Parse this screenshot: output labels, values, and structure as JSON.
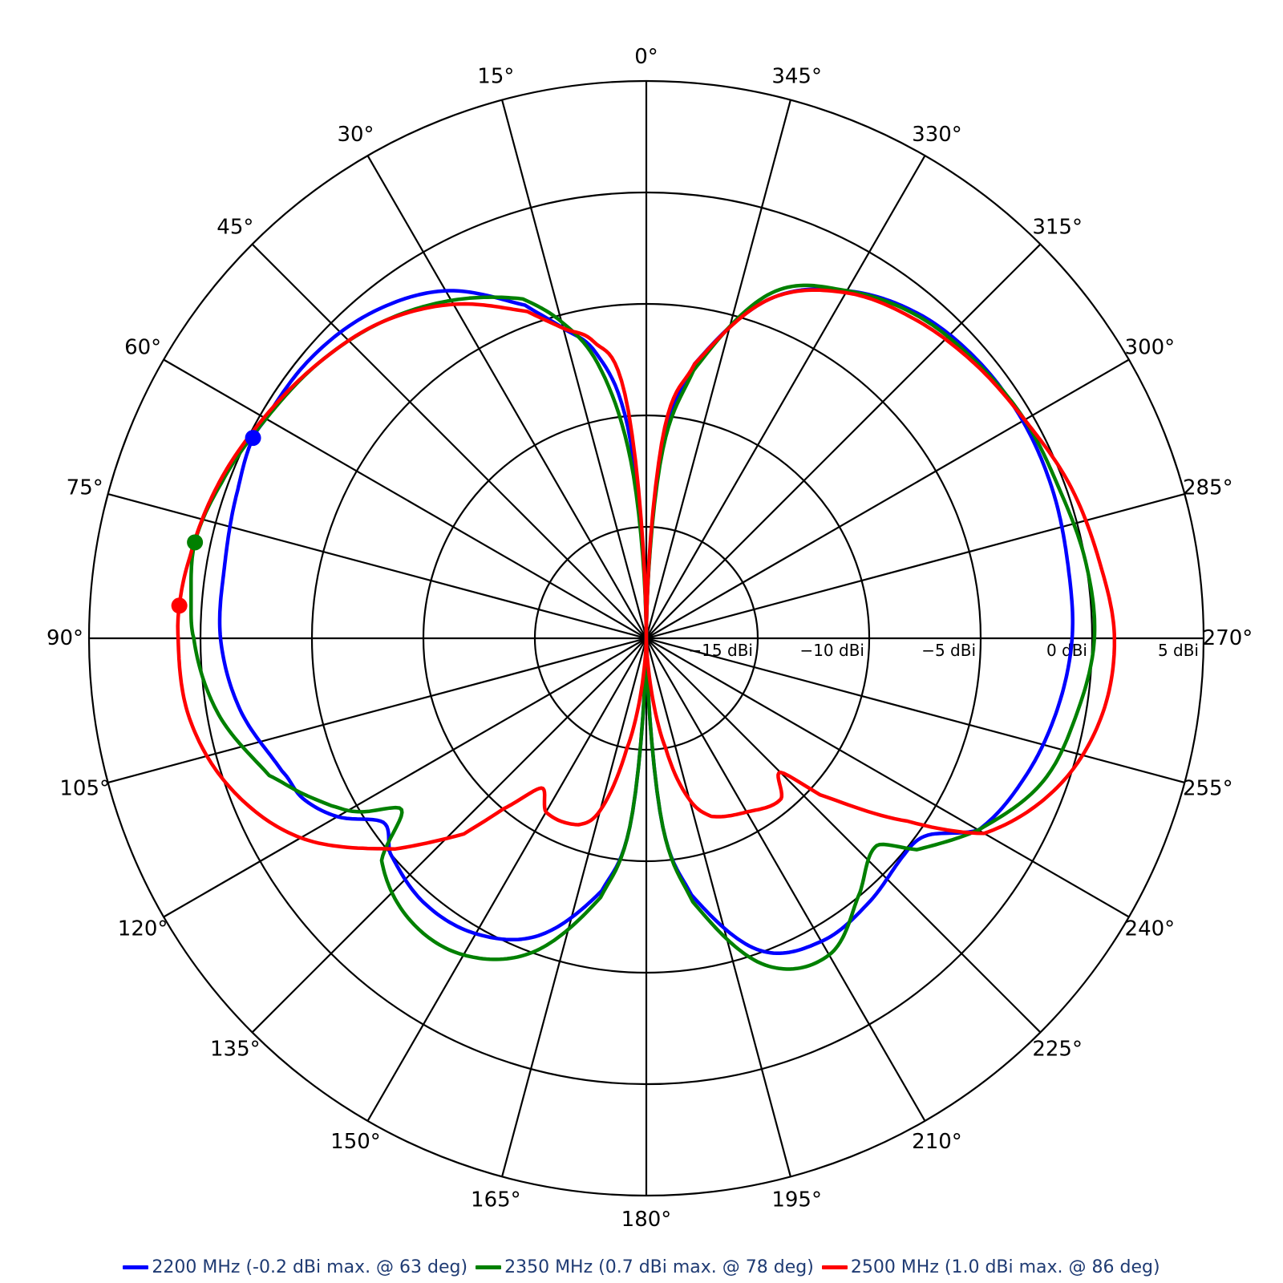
{
  "chart_data": {
    "type": "polar-line",
    "title": "",
    "angle_labels": [
      "0°",
      "15°",
      "30°",
      "45°",
      "60°",
      "75°",
      "90°",
      "105°",
      "120°",
      "135°",
      "150°",
      "165°",
      "180°",
      "195°",
      "210°",
      "225°",
      "240°",
      "255°",
      "270°",
      "285°",
      "300°",
      "315°",
      "330°",
      "345°"
    ],
    "radial_axis": {
      "unit": "dBi",
      "range": [
        -20,
        5
      ],
      "ticks": [
        -15,
        -10,
        -5,
        0,
        5
      ],
      "tick_labels": [
        "−15 dBi",
        "−10 dBi",
        "−5 dBi",
        "0 dBi",
        "5 dBi"
      ],
      "grid_rings": [
        -15,
        -10,
        -5,
        0,
        5
      ]
    },
    "angle_direction": "counterclockwise from top",
    "grid": true,
    "legend_position": "bottom",
    "series": [
      {
        "name": "2200 MHz (-0.2 dBi max. @ 63 deg)",
        "color": "#0000ff",
        "peak": {
          "angle": 63,
          "value": -0.2
        },
        "points": [
          [
            0,
            -20
          ],
          [
            5,
            -10.5
          ],
          [
            10,
            -7.0
          ],
          [
            15,
            -5.6
          ],
          [
            20,
            -4.1
          ],
          [
            30,
            -2.0
          ],
          [
            40,
            -0.9
          ],
          [
            50,
            -0.4
          ],
          [
            60,
            -0.3
          ],
          [
            63,
            -0.2
          ],
          [
            70,
            -0.5
          ],
          [
            80,
            -0.8
          ],
          [
            90,
            -0.9
          ],
          [
            100,
            -1.5
          ],
          [
            110,
            -2.6
          ],
          [
            115,
            -3.0
          ],
          [
            120,
            -4.0
          ],
          [
            125,
            -5.6
          ],
          [
            130,
            -5.0
          ],
          [
            140,
            -4.5
          ],
          [
            150,
            -4.7
          ],
          [
            160,
            -5.8
          ],
          [
            170,
            -8.5
          ],
          [
            175,
            -11.5
          ],
          [
            180,
            -20
          ],
          [
            185,
            -11.5
          ],
          [
            190,
            -8.3
          ],
          [
            200,
            -5.1
          ],
          [
            210,
            -4.3
          ],
          [
            220,
            -4.5
          ],
          [
            230,
            -4.9
          ],
          [
            235,
            -4.6
          ],
          [
            240,
            -2.8
          ],
          [
            250,
            -1.9
          ],
          [
            260,
            -1.3
          ],
          [
            270,
            -0.9
          ],
          [
            280,
            -0.8
          ],
          [
            290,
            -0.6
          ],
          [
            300,
            -0.5
          ],
          [
            310,
            -0.6
          ],
          [
            320,
            -1.0
          ],
          [
            330,
            -2.0
          ],
          [
            340,
            -3.8
          ],
          [
            350,
            -7.5
          ],
          [
            355,
            -11.0
          ],
          [
            360,
            -20
          ]
        ]
      },
      {
        "name": "2350 MHz (0.7 dBi max. @ 78 deg)",
        "color": "#008000",
        "peak": {
          "angle": 78,
          "value": 0.7
        },
        "points": [
          [
            0,
            -20
          ],
          [
            5,
            -12.0
          ],
          [
            10,
            -7.5
          ],
          [
            15,
            -5.3
          ],
          [
            20,
            -3.8
          ],
          [
            30,
            -2.5
          ],
          [
            40,
            -1.5
          ],
          [
            50,
            -0.8
          ],
          [
            60,
            -0.3
          ],
          [
            70,
            0.3
          ],
          [
            78,
            0.7
          ],
          [
            85,
            0.5
          ],
          [
            90,
            0.3
          ],
          [
            100,
            -0.5
          ],
          [
            110,
            -2.0
          ],
          [
            114,
            -3.0
          ],
          [
            118,
            -4.0
          ],
          [
            121,
            -4.9
          ],
          [
            125,
            -6.6
          ],
          [
            130,
            -4.5
          ],
          [
            140,
            -3.5
          ],
          [
            150,
            -3.6
          ],
          [
            160,
            -5.0
          ],
          [
            170,
            -8.2
          ],
          [
            175,
            -11.5
          ],
          [
            180,
            -20
          ],
          [
            185,
            -11.5
          ],
          [
            190,
            -8.0
          ],
          [
            200,
            -4.4
          ],
          [
            210,
            -3.6
          ],
          [
            220,
            -5.1
          ],
          [
            228,
            -6.1
          ],
          [
            232,
            -4.6
          ],
          [
            240,
            -2.8
          ],
          [
            250,
            -1.1
          ],
          [
            260,
            -0.4
          ],
          [
            270,
            0.1
          ],
          [
            280,
            0.0
          ],
          [
            290,
            -0.3
          ],
          [
            300,
            -0.4
          ],
          [
            310,
            -0.7
          ],
          [
            320,
            -1.1
          ],
          [
            330,
            -2.0
          ],
          [
            340,
            -3.5
          ],
          [
            350,
            -7.8
          ],
          [
            355,
            -11.5
          ],
          [
            360,
            -20
          ]
        ]
      },
      {
        "name": "2500 MHz (1.0 dBi max. @ 86 deg)",
        "color": "#ff0000",
        "peak": {
          "angle": 86,
          "value": 1.0
        },
        "points": [
          [
            0,
            -20
          ],
          [
            5,
            -9.0
          ],
          [
            10,
            -6.5
          ],
          [
            15,
            -5.6
          ],
          [
            20,
            -4.4
          ],
          [
            30,
            -2.7
          ],
          [
            40,
            -1.5
          ],
          [
            50,
            -0.8
          ],
          [
            60,
            -0.2
          ],
          [
            70,
            0.4
          ],
          [
            80,
            0.8
          ],
          [
            86,
            1.0
          ],
          [
            90,
            1.0
          ],
          [
            100,
            0.8
          ],
          [
            110,
            -0.2
          ],
          [
            120,
            -2.1
          ],
          [
            130,
            -5.3
          ],
          [
            137,
            -8.0
          ],
          [
            140,
            -10.0
          ],
          [
            145,
            -11.8
          ],
          [
            150,
            -11.0
          ],
          [
            160,
            -11.1
          ],
          [
            165,
            -12.0
          ],
          [
            170,
            -15.0
          ],
          [
            180,
            -20
          ],
          [
            190,
            -15.0
          ],
          [
            195,
            -12.5
          ],
          [
            200,
            -11.5
          ],
          [
            210,
            -11.0
          ],
          [
            220,
            -10.6
          ],
          [
            225,
            -11.5
          ],
          [
            228,
            -9.5
          ],
          [
            235,
            -5.7
          ],
          [
            240,
            -2.5
          ],
          [
            250,
            -0.4
          ],
          [
            260,
            0.7
          ],
          [
            270,
            1.0
          ],
          [
            280,
            0.6
          ],
          [
            290,
            0.2
          ],
          [
            300,
            -0.4
          ],
          [
            310,
            -0.8
          ],
          [
            320,
            -1.3
          ],
          [
            330,
            -2.1
          ],
          [
            340,
            -3.8
          ],
          [
            350,
            -7.5
          ],
          [
            355,
            -10.5
          ],
          [
            360,
            -20
          ]
        ]
      }
    ]
  }
}
